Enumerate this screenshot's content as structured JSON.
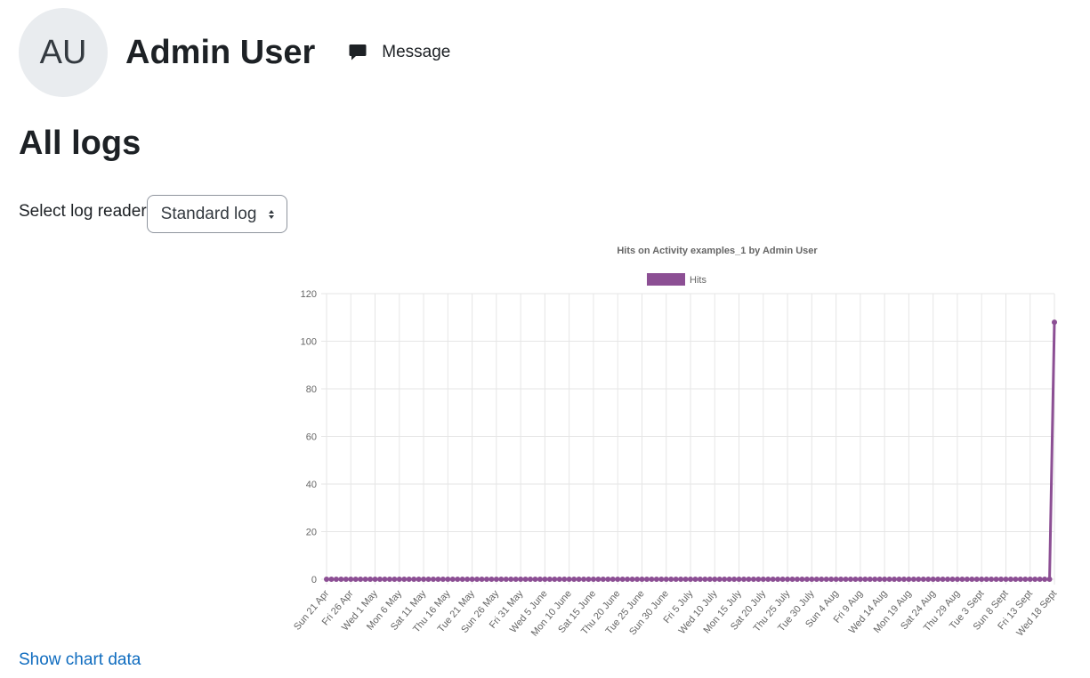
{
  "header": {
    "initials": "AU",
    "user_name": "Admin User",
    "message_label": "Message"
  },
  "page": {
    "title": "All logs"
  },
  "log_reader": {
    "label": "Select log reader",
    "selected": "Standard log"
  },
  "links": {
    "show_chart_data": "Show chart data"
  },
  "colors": {
    "series": "#8c4f94",
    "link": "#0f6cbf",
    "grid": "#e6e6e6",
    "axis_text": "#666666"
  },
  "chart_data": {
    "type": "line",
    "title": "Hits on Activity examples_1 by Admin User",
    "legend": "top",
    "grid": true,
    "ylim": [
      0,
      120
    ],
    "yticks": [
      0,
      20,
      40,
      60,
      80,
      100,
      120
    ],
    "x_start": "2024-04-21",
    "x_end": "2024-09-18",
    "xtick_labels": [
      "Sun 21 Apr",
      "Fri 26 Apr",
      "Wed 1 May",
      "Mon 6 May",
      "Sat 11 May",
      "Thu 16 May",
      "Tue 21 May",
      "Sun 26 May",
      "Fri 31 May",
      "Wed 5 June",
      "Mon 10 June",
      "Sat 15 June",
      "Thu 20 June",
      "Tue 25 June",
      "Sun 30 June",
      "Fri 5 July",
      "Wed 10 July",
      "Mon 15 July",
      "Sat 20 July",
      "Thu 25 July",
      "Tue 30 July",
      "Sun 4 Aug",
      "Fri 9 Aug",
      "Wed 14 Aug",
      "Mon 19 Aug",
      "Sat 24 Aug",
      "Thu 29 Aug",
      "Tue 3 Sept",
      "Sun 8 Sept",
      "Fri 13 Sept",
      "Wed 18 Sept"
    ],
    "series": [
      {
        "name": "Hits",
        "default_value": 0,
        "nonzero": [
          {
            "x": "2024-09-18",
            "y": 108
          }
        ]
      }
    ]
  }
}
